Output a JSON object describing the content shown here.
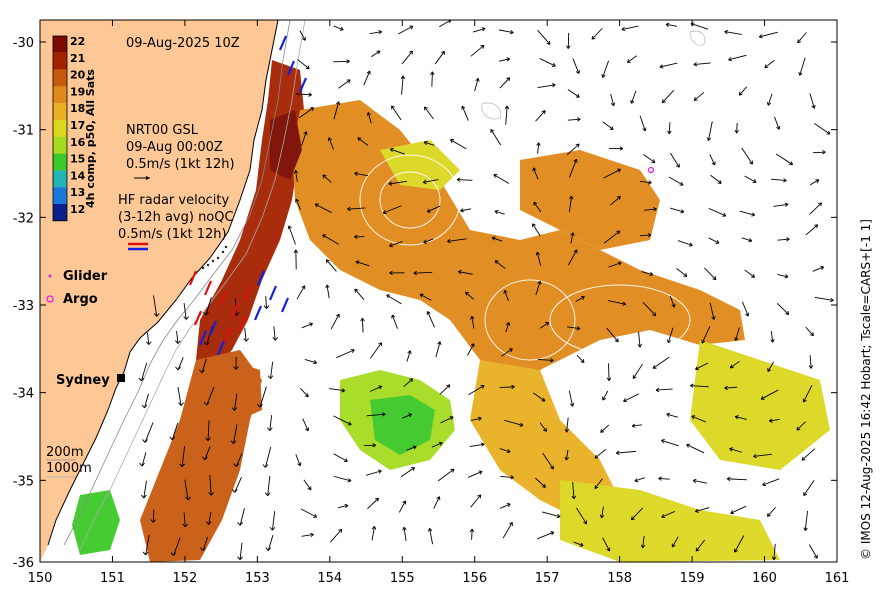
{
  "title": "09-Aug-2025 10Z",
  "colorbar": {
    "label": "4h comp, p50, All Sats",
    "ticks": [
      "22",
      "21",
      "20",
      "19",
      "18",
      "17",
      "16",
      "15",
      "14",
      "13",
      "12"
    ],
    "colors": [
      "#7a0a00",
      "#a52200",
      "#c85a10",
      "#e08a1a",
      "#e8b020",
      "#dcd820",
      "#a6dc20",
      "#3cc828",
      "#20b4b4",
      "#1878dc",
      "#0a1e8c"
    ]
  },
  "annotations": {
    "gsl_line1": "NRT00 GSL",
    "gsl_line2": "09-Aug 00:00Z",
    "gsl_line3": "0.5m/s (1kt 12h)",
    "hf_line1": "HF radar velocity",
    "hf_line2": "(3-12h avg) noQC",
    "hf_line3": "0.5m/s (1kt 12h)"
  },
  "legend": {
    "glider": "Glider",
    "argo": "Argo",
    "glider_color": "#e020e0",
    "argo_color": "#e020e0"
  },
  "places": {
    "sydney": "Sydney"
  },
  "depth_legend": {
    "line1": "200m",
    "line2": "1000m"
  },
  "credit": "© IMOS 12-Aug-2025 16:42 Hobart; Tscale=CARS+[-1 1]",
  "axes": {
    "xticks": [
      "150",
      "151",
      "152",
      "153",
      "154",
      "155",
      "156",
      "157",
      "158",
      "159",
      "160",
      "161"
    ],
    "yticks": [
      "-30",
      "-31",
      "-32",
      "-33",
      "-34",
      "-35",
      "-36"
    ]
  },
  "colors": {
    "land": "#fdc896",
    "ocean": "#ffffff"
  }
}
